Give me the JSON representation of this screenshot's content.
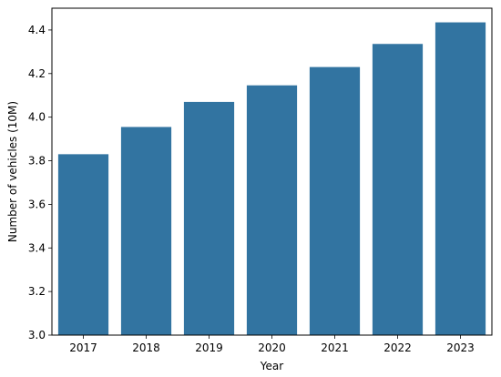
{
  "chart_data": {
    "type": "bar",
    "title": "",
    "xlabel": "Year",
    "ylabel": "Number of vehicles (10M)",
    "categories": [
      "2017",
      "2018",
      "2019",
      "2020",
      "2021",
      "2022",
      "2023"
    ],
    "values": [
      3.83,
      3.955,
      4.07,
      4.146,
      4.23,
      4.336,
      4.435
    ],
    "ylim": [
      3.0,
      4.5
    ],
    "yticks": [
      3.0,
      3.2,
      3.4,
      3.6,
      3.8,
      4.0,
      4.2,
      4.4
    ],
    "ytick_labels": [
      "3.0",
      "3.2",
      "3.4",
      "3.6",
      "3.8",
      "4.0",
      "4.2",
      "4.4"
    ],
    "bar_color": "#3274a1",
    "grid": false,
    "legend": "none"
  }
}
